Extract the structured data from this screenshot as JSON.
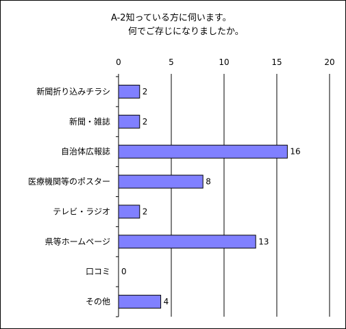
{
  "chart_data": {
    "type": "bar",
    "orientation": "horizontal",
    "title_lines": [
      "A-2知っている方に伺います。",
      "何でご存じになりましたか。"
    ],
    "categories": [
      "新聞折り込みチラシ",
      "新聞・雑誌",
      "自治体広報誌",
      "医療機関等のポスター",
      "テレビ・ラジオ",
      "県等ホームページ",
      "口コミ",
      "その他"
    ],
    "values": [
      2,
      2,
      16,
      8,
      2,
      13,
      0,
      4
    ],
    "data_labels": [
      "2",
      "2",
      "16",
      "8",
      "2",
      "13",
      "0",
      "4"
    ],
    "xlim": [
      0,
      20
    ],
    "xticks": [
      0,
      5,
      10,
      15,
      20
    ],
    "xtick_labels": [
      "0",
      "5",
      "10",
      "15",
      "20"
    ],
    "tick_position": "top",
    "grid": true,
    "legend": "none",
    "xlabel": "",
    "ylabel": ""
  },
  "colors": {
    "bar_fill": "#8080ff",
    "bar_stroke": "#000000",
    "grid": "#000000",
    "frame": "#000000",
    "background": "#ffffff"
  }
}
